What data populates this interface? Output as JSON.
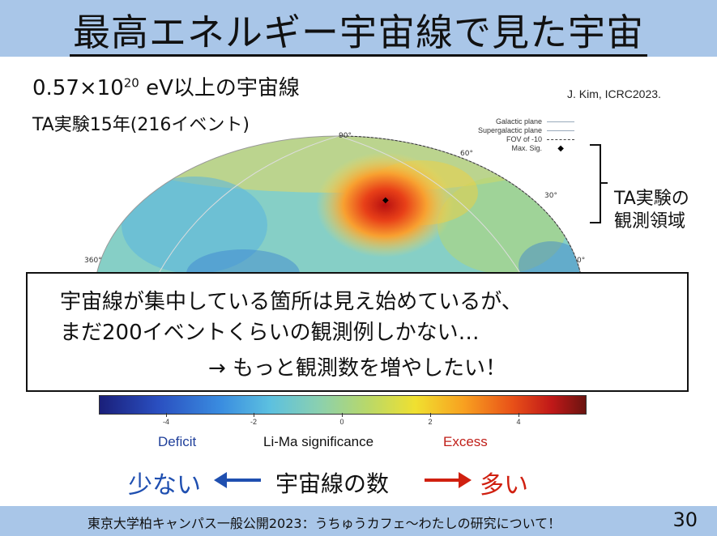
{
  "title": "最高エネルギー宇宙線で見た宇宙",
  "subtitle": {
    "prefix": "0.57×10",
    "exponent": "20",
    "suffix": " eV以上の宇宙線"
  },
  "experiment": "TA実験15年(216イベント)",
  "credit": "J. Kim, ICRC2023.",
  "skymap": {
    "lat_labels": [
      "90°",
      "60°",
      "30°",
      "0°"
    ],
    "lon_labels": [
      "360°"
    ],
    "legend": [
      "Galactic plane",
      "Supergalactic plane",
      "FOV of -10",
      "Max. Sig."
    ],
    "colors": {
      "hotspot": "#c81a10",
      "background": "#7ec9c8"
    }
  },
  "region_label": [
    "TA実験の",
    "観測領域"
  ],
  "callout": {
    "line1": "宇宙線が集中している箇所は見え始めているが、",
    "line2": "まだ200イベントくらいの観測例しかない…",
    "line3": "→ もっと観測数を増やしたい！"
  },
  "colorbar": {
    "ticks": [
      "-4",
      "-2",
      "0",
      "2",
      "4"
    ],
    "deficit": "Deficit",
    "label": "Li-Ma significance",
    "excess": "Excess"
  },
  "bottom": {
    "few": "少ない",
    "count": "宇宙線の数",
    "many": "多い"
  },
  "footer": {
    "text": "東京大学柏キャンパス一般公開2023：うちゅうカフェ〜わたしの研究について！",
    "page": "30"
  }
}
